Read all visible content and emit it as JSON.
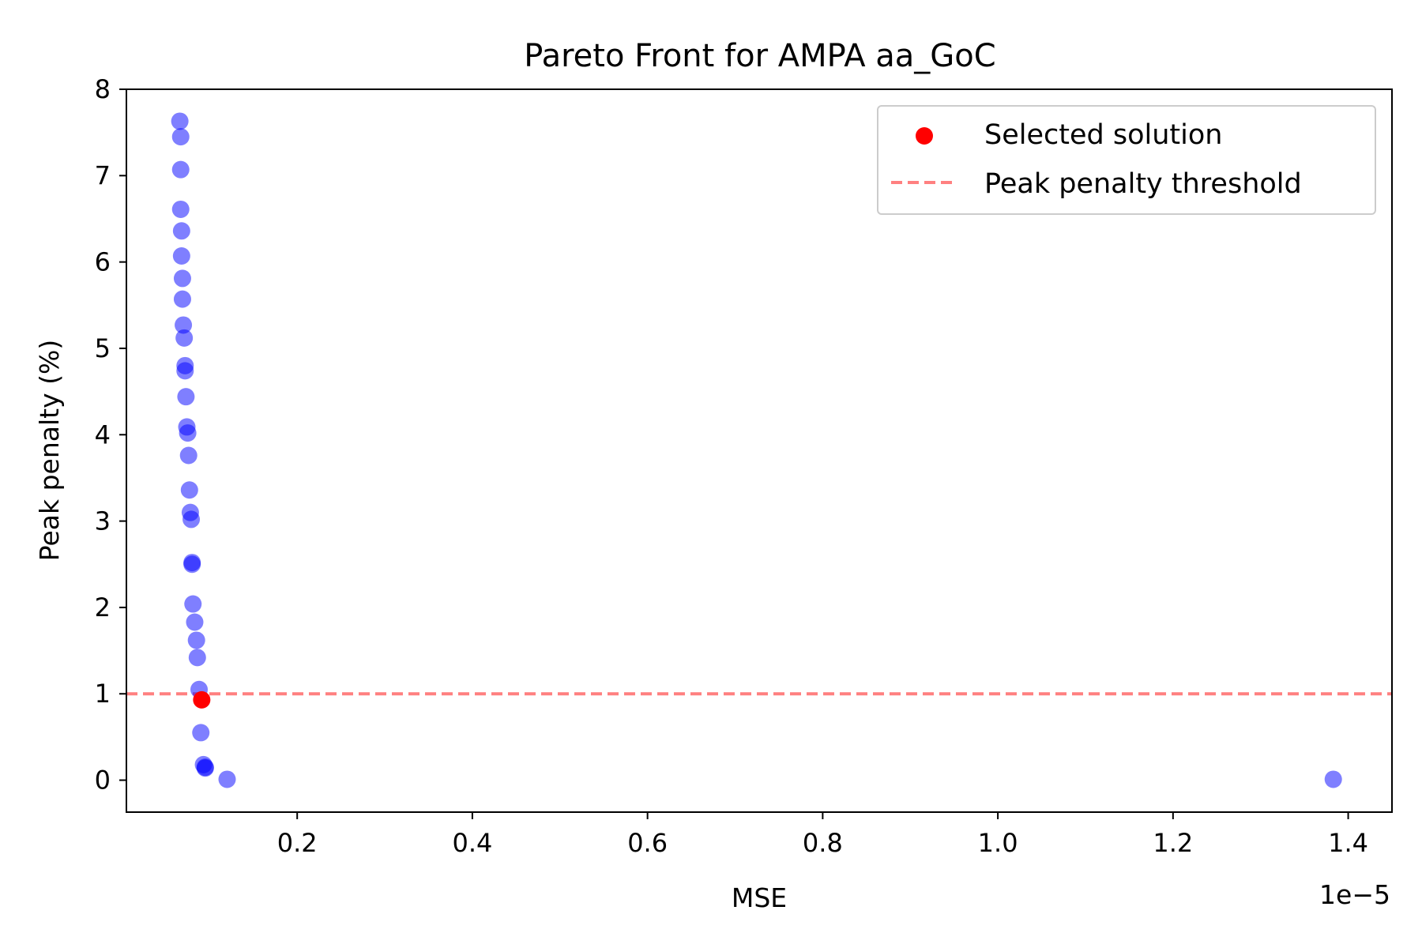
{
  "chart_data": {
    "type": "scatter",
    "title": "Pareto Front for AMPA aa_GoC",
    "xlabel": "MSE",
    "ylabel": "Peak penalty (%)",
    "x_offset_label": "1e−5",
    "x_scale": 1e-05,
    "xlim": [
      0.005,
      1.45
    ],
    "ylim": [
      -0.37,
      8.0
    ],
    "xticks": [
      0.2,
      0.4,
      0.6,
      0.8,
      1.0,
      1.2,
      1.4
    ],
    "xtick_labels": [
      "0.2",
      "0.4",
      "0.6",
      "0.8",
      "1.0",
      "1.2",
      "1.4"
    ],
    "yticks": [
      0,
      1,
      2,
      3,
      4,
      5,
      6,
      7,
      8
    ],
    "ytick_labels": [
      "0",
      "1",
      "2",
      "3",
      "4",
      "5",
      "6",
      "7",
      "8"
    ],
    "grid": false,
    "legend_position": "top-right",
    "colors": {
      "pareto": "#0000ff",
      "selected": "#ff0000",
      "threshold": "#ff8080"
    },
    "series": [
      {
        "kind": "scatter",
        "x": [
          0.066,
          0.067,
          0.067,
          0.067,
          0.068,
          0.068,
          0.069,
          0.069,
          0.07,
          0.071,
          0.072,
          0.072,
          0.073,
          0.074,
          0.075,
          0.076,
          0.077,
          0.078,
          0.079,
          0.08,
          0.08,
          0.081,
          0.083,
          0.085,
          0.086,
          0.088,
          0.09,
          0.093,
          0.095,
          0.095,
          0.12,
          1.383
        ],
        "y": [
          7.63,
          7.45,
          7.07,
          6.61,
          6.36,
          6.07,
          5.81,
          5.57,
          5.27,
          5.12,
          4.8,
          4.74,
          4.44,
          4.09,
          4.02,
          3.76,
          3.36,
          3.1,
          3.02,
          2.52,
          2.5,
          2.04,
          1.83,
          1.62,
          1.42,
          1.05,
          0.55,
          0.18,
          0.14,
          0.15,
          0.01,
          0.01
        ]
      },
      {
        "kind": "scatter",
        "name": "Selected solution",
        "x": [
          0.091
        ],
        "y": [
          0.93
        ]
      },
      {
        "kind": "hline",
        "name": "Peak penalty threshold",
        "y": 1.0
      }
    ]
  }
}
